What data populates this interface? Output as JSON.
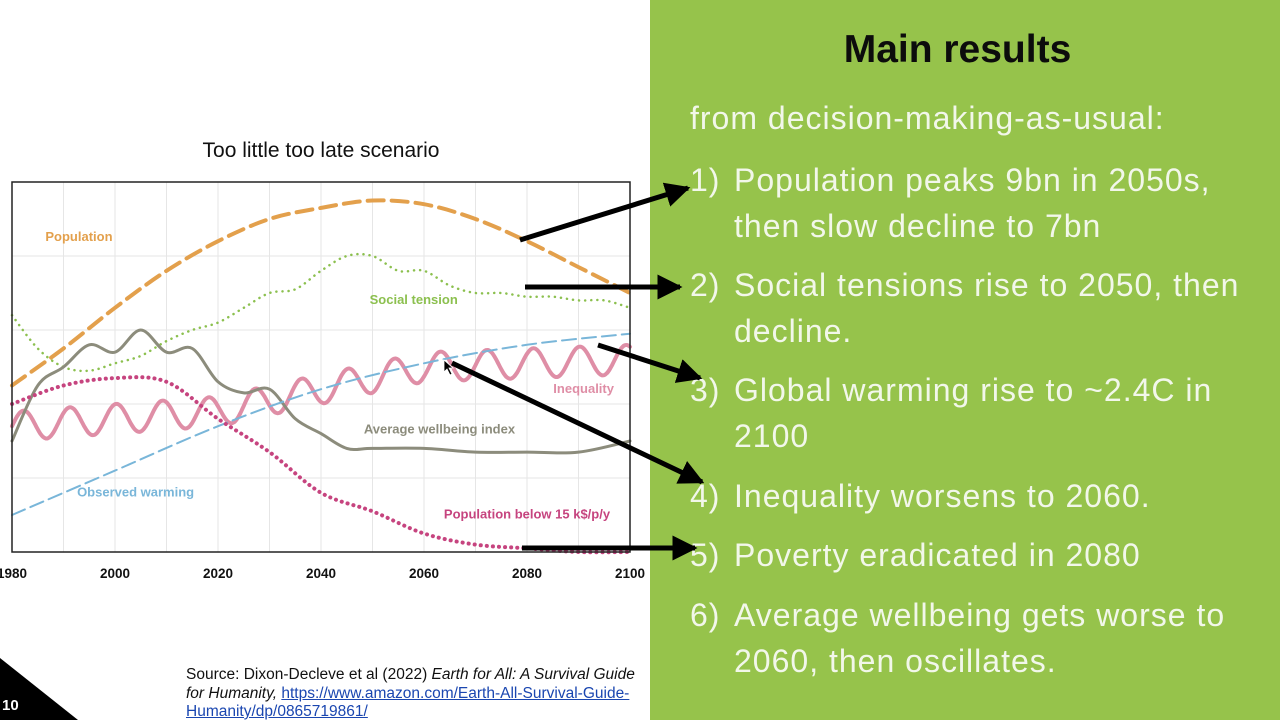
{
  "chart_data": {
    "type": "line",
    "title": "Too little too late scenario",
    "x_ticks": [
      "1980",
      "2000",
      "2020",
      "2040",
      "2060",
      "2080",
      "2100"
    ],
    "xlim": [
      1980,
      2100
    ],
    "ylim": [
      0,
      100
    ],
    "grid": true,
    "series": [
      {
        "name": "Population",
        "color": "#e3a04c",
        "style": "dashed",
        "x": [
          1980,
          1990,
          2000,
          2010,
          2020,
          2030,
          2040,
          2050,
          2060,
          2070,
          2080,
          2090,
          2100
        ],
        "y": [
          45,
          55,
          66,
          76,
          84,
          90,
          93,
          95,
          94,
          90,
          84,
          77,
          70
        ]
      },
      {
        "name": "Social tension",
        "color": "#8cc04f",
        "style": "dotted",
        "x": [
          1980,
          1985,
          1990,
          1995,
          2000,
          2005,
          2010,
          2015,
          2020,
          2025,
          2030,
          2035,
          2040,
          2045,
          2050,
          2055,
          2060,
          2065,
          2070,
          2075,
          2080,
          2085,
          2090,
          2095,
          2100
        ],
        "y": [
          64,
          55,
          50,
          49,
          51,
          53,
          57,
          60,
          62,
          66,
          70,
          71,
          76,
          80,
          80,
          76,
          76,
          72,
          70,
          70,
          69,
          69,
          68,
          68,
          66
        ]
      },
      {
        "name": "Inequality",
        "color": "#df8ea6",
        "style": "wavy",
        "x": [
          1980,
          2000,
          2020,
          2040,
          2060,
          2080,
          2100
        ],
        "y": [
          34,
          36,
          38,
          44,
          50,
          51,
          52
        ]
      },
      {
        "name": "Average wellbeing index",
        "color": "#8c8c7c",
        "style": "solid",
        "x": [
          1980,
          1985,
          1990,
          1995,
          2000,
          2005,
          2010,
          2015,
          2020,
          2025,
          2030,
          2035,
          2040,
          2045,
          2050,
          2060,
          2070,
          2080,
          2090,
          2100
        ],
        "y": [
          30,
          45,
          50,
          56,
          54,
          60,
          54,
          55,
          46,
          43,
          44,
          36,
          32,
          28,
          28,
          28,
          27,
          27,
          27,
          30
        ]
      },
      {
        "name": "Observed warming",
        "color": "#79b6d9",
        "style": "dashed",
        "x": [
          1980,
          2000,
          2020,
          2040,
          2060,
          2080,
          2100
        ],
        "y": [
          10,
          22,
          34,
          44,
          51,
          56,
          59
        ]
      },
      {
        "name": "Population below 15 k$/p/y",
        "color": "#c6447f",
        "style": "dotted",
        "x": [
          1980,
          1990,
          2000,
          2010,
          2020,
          2030,
          2040,
          2050,
          2060,
          2070,
          2080,
          2090,
          2100
        ],
        "y": [
          40,
          45,
          47,
          46,
          36,
          27,
          16,
          11,
          5,
          2,
          1,
          0,
          0
        ]
      }
    ]
  },
  "source": {
    "prefix": "Source: Dixon-Decleve et al (2022) ",
    "book_title": "Earth for All: A Survival Guide for Humanity,",
    "url": "https://www.amazon.com/Earth-All-Survival-Guide-Humanity/dp/0865719861/"
  },
  "slide_number": "10",
  "results": {
    "title": "Main results",
    "intro": "from decision-making-as-usual:",
    "items": [
      {
        "num": "1)",
        "text": "Population peaks 9bn in 2050s, then slow decline to 7bn"
      },
      {
        "num": "2)",
        "text": "Social tensions rise to 2050, then decline."
      },
      {
        "num": "3)",
        "text": "Global warming rise to ~2.4C in 2100"
      },
      {
        "num": "4)",
        "text": "Inequality worsens to 2060."
      },
      {
        "num": "5)",
        "text": "Poverty eradicated in 2080"
      },
      {
        "num": "6)",
        "text": "Average wellbeing gets worse to 2060, then oscillates."
      }
    ]
  },
  "colors": {
    "panel": "#96c34b",
    "arrow": "#000000",
    "title": "#0c0c0c",
    "list_text": "#f2f7ea"
  }
}
